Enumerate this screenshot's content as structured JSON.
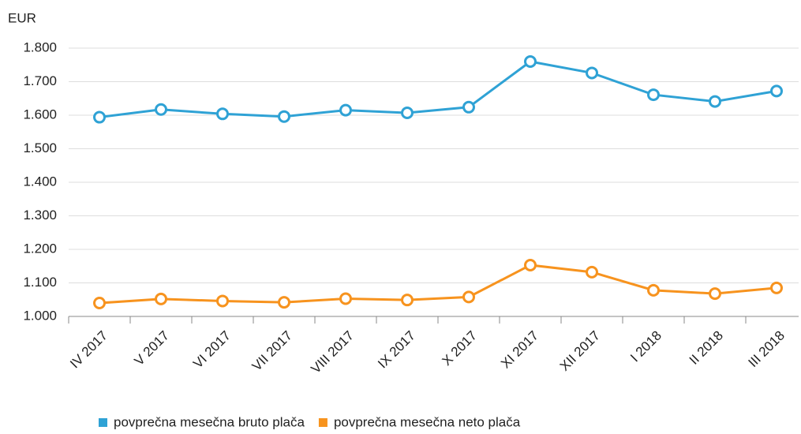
{
  "chart_data": {
    "type": "line",
    "y_axis_label": "EUR",
    "categories": [
      "IV 2017",
      "V 2017",
      "VI 2017",
      "VII 2017",
      "VIII 2017",
      "IX 2017",
      "X 2017",
      "XI 2017",
      "XII 2017",
      "I 2018",
      "II 2018",
      "III 2018"
    ],
    "series": [
      {
        "name": "povprečna mesečna bruto plača",
        "color": "#2fa2d5",
        "values": [
          1594,
          1617,
          1604,
          1596,
          1615,
          1607,
          1624,
          1760,
          1726,
          1661,
          1641,
          1672
        ]
      },
      {
        "name": "povprečna mesečna neto plača",
        "color": "#f7931e",
        "values": [
          1040,
          1052,
          1046,
          1042,
          1053,
          1049,
          1058,
          1153,
          1132,
          1078,
          1068,
          1085
        ]
      }
    ],
    "ylim": [
      1000,
      1800
    ],
    "yticks": [
      {
        "value": 1000,
        "label": "1.000"
      },
      {
        "value": 1100,
        "label": "1.100"
      },
      {
        "value": 1200,
        "label": "1.200"
      },
      {
        "value": 1300,
        "label": "1.300"
      },
      {
        "value": 1400,
        "label": "1.400"
      },
      {
        "value": 1500,
        "label": "1.500"
      },
      {
        "value": 1600,
        "label": "1.600"
      },
      {
        "value": 1700,
        "label": "1.700"
      },
      {
        "value": 1800,
        "label": "1.800"
      }
    ],
    "grid": true,
    "legend": "bottom"
  }
}
